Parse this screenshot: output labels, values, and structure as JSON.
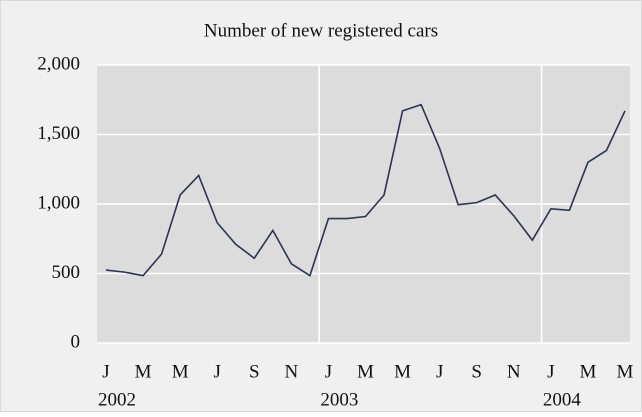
{
  "chart_data": {
    "type": "line",
    "title": "Number of new registered cars",
    "categories": [
      "J",
      null,
      "M",
      null,
      "M",
      null,
      "J",
      null,
      "S",
      null,
      "N",
      null,
      "J",
      null,
      "M",
      null,
      "M",
      null,
      "J",
      null,
      "S",
      null,
      "N",
      null,
      "J",
      null,
      "M",
      null,
      "M"
    ],
    "years": [
      "2002",
      "2003",
      "2004"
    ],
    "series": [
      {
        "name": "New registered cars",
        "color": "#2b3550",
        "values": [
          525,
          510,
          485,
          640,
          1065,
          1205,
          865,
          710,
          610,
          810,
          570,
          485,
          895,
          895,
          910,
          1065,
          1670,
          1715,
          1400,
          995,
          1010,
          1065,
          915,
          740,
          965,
          955,
          1300,
          1385,
          1670
        ]
      }
    ],
    "ylim": [
      0,
      2000
    ],
    "yticks": [
      0,
      500,
      {
        "value": 1000,
        "label": "1,000"
      },
      {
        "value": 1500,
        "label": "1,500"
      },
      {
        "value": 2000,
        "label": "2,000"
      }
    ],
    "grid": true
  }
}
